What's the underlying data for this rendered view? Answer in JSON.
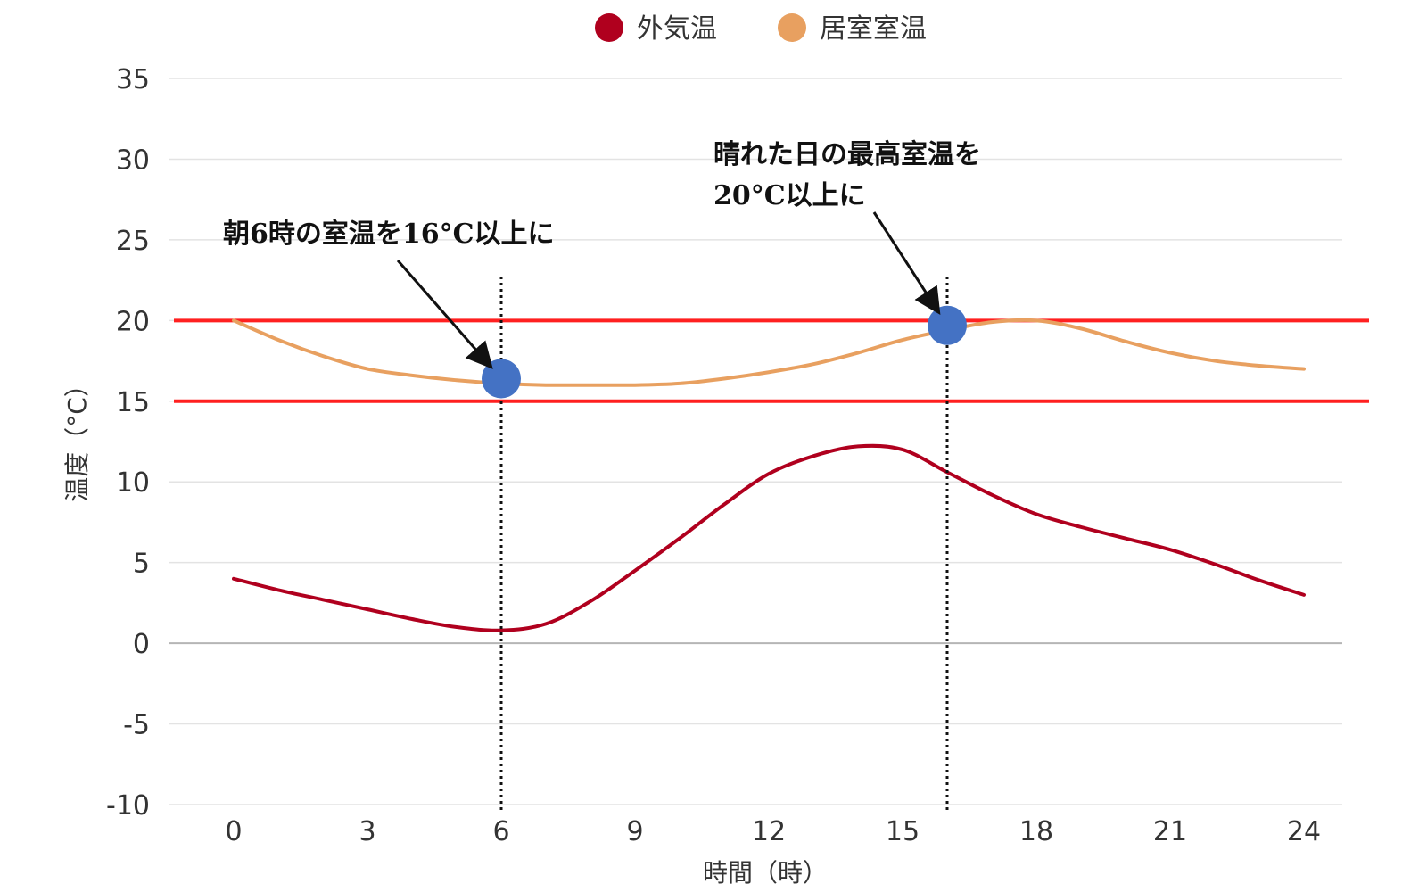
{
  "chart_data": {
    "type": "line",
    "title": "",
    "xlabel": "時間（時）",
    "ylabel": "温度（°C）",
    "x_ticks": [
      0,
      3,
      6,
      9,
      12,
      15,
      18,
      21,
      24
    ],
    "y_ticks": [
      35,
      30,
      25,
      20,
      15,
      10,
      5,
      0,
      -5,
      -10
    ],
    "xlim": [
      0,
      24
    ],
    "ylim": [
      -10,
      35
    ],
    "grid": true,
    "legend_position": "top-center",
    "series": [
      {
        "name": "外気温",
        "color": "#B0001E",
        "x": [
          0,
          1,
          2,
          3,
          4,
          5,
          6,
          7,
          8,
          9,
          10,
          11,
          12,
          13,
          14,
          15,
          16,
          17,
          18,
          19,
          20,
          21,
          22,
          23,
          24
        ],
        "y": [
          4,
          3.3,
          2.7,
          2.1,
          1.5,
          1.0,
          0.8,
          1.2,
          2.6,
          4.5,
          6.5,
          8.6,
          10.5,
          11.6,
          12.2,
          12.0,
          10.6,
          9.2,
          8.0,
          7.2,
          6.5,
          5.8,
          4.9,
          3.9,
          3.0
        ]
      },
      {
        "name": "居室室温",
        "color": "#E8A060",
        "x": [
          0,
          1,
          2,
          3,
          4,
          5,
          6,
          7,
          8,
          9,
          10,
          11,
          12,
          13,
          14,
          15,
          16,
          17,
          18,
          19,
          20,
          21,
          22,
          23,
          24
        ],
        "y": [
          20,
          18.8,
          17.8,
          17.0,
          16.6,
          16.3,
          16.1,
          16.0,
          16.0,
          16.0,
          16.1,
          16.4,
          16.8,
          17.3,
          18.0,
          18.8,
          19.4,
          19.9,
          20.0,
          19.5,
          18.7,
          18.0,
          17.5,
          17.2,
          17.0
        ]
      }
    ],
    "reference_lines": [
      {
        "y": 20,
        "color": "#FF2020"
      },
      {
        "y": 15,
        "color": "#FF2020"
      }
    ],
    "markers": [
      {
        "x": 6,
        "y": 16.4,
        "color": "#4472C4"
      },
      {
        "x": 16,
        "y": 19.7,
        "color": "#4472C4"
      }
    ],
    "vertical_lines": [
      {
        "x": 6
      },
      {
        "x": 16
      }
    ],
    "annotations": [
      {
        "lines": [
          "朝6時の室温を16°C以上に"
        ],
        "target_marker": 0
      },
      {
        "lines": [
          "晴れた日の最高室温を",
          "20°C以上に"
        ],
        "target_marker": 1
      }
    ]
  }
}
